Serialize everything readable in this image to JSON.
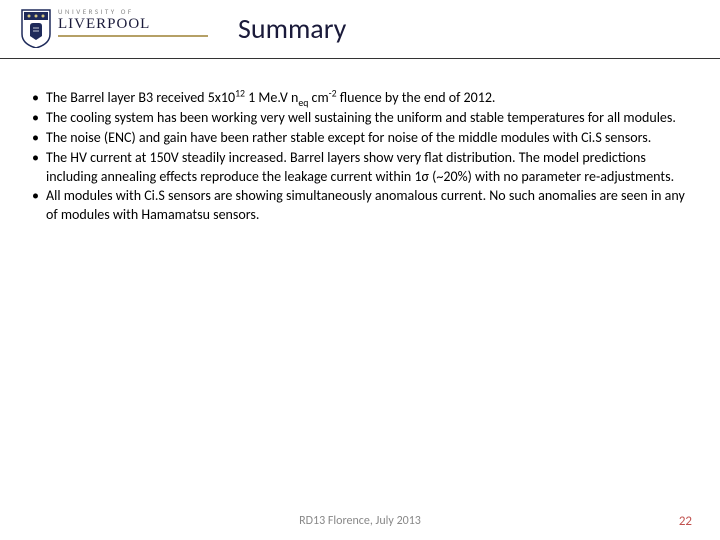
{
  "header": {
    "uni_small": "UNIVERSITY OF",
    "uni_name": "LIVERPOOL",
    "title": "Summary"
  },
  "bullets": [
    "The Barrel layer B3 received 5x10<span class=\"sup\">12</span> 1 Me.V n<span class=\"sub\">eq</span> cm<span class=\"sup\">-2</span> fluence by the end of 2012.",
    "The cooling system has been working very well sustaining the uniform and stable temperatures for all modules.",
    "The noise (ENC) and gain have been rather stable except for noise of the middle modules with Ci.S sensors.",
    "The HV current at 150V steadily increased. Barrel layers show very flat distribution. The model predictions including annealing effects reproduce the leakage current within 1σ (~20%) with no parameter re-adjustments.",
    "All modules with Ci.S sensors are showing simultaneously anomalous current. No such anomalies are seen in any of modules with Hamamatsu sensors."
  ],
  "footer": {
    "text": "RD13 Florence, July 2013",
    "page": "22"
  },
  "colors": {
    "title_color": "#1a1a3a",
    "accent": "#b5a066",
    "page_color": "#c0504d",
    "footer_color": "#888888"
  }
}
